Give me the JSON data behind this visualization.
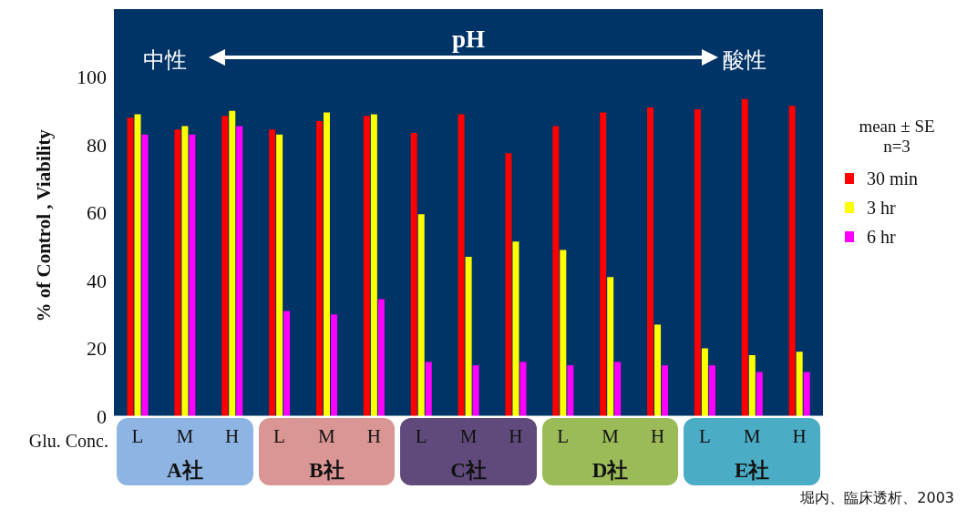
{
  "chart_data": {
    "type": "bar",
    "ylabel": "% of Control , Viability",
    "legend_title": "mean ± SE n=3",
    "categories": [
      "L",
      "M",
      "H",
      "L",
      "M",
      "H",
      "L",
      "M",
      "H",
      "L",
      "M",
      "H",
      "L",
      "M",
      "H"
    ],
    "series": [
      {
        "name": "30 min",
        "color": "#ff0000",
        "values": [
          88,
          84.5,
          88.5,
          84.5,
          87,
          88.5,
          83.5,
          89,
          77.5,
          85.5,
          89.5,
          91,
          90.5,
          93.5,
          91.5
        ]
      },
      {
        "name": "3 hr",
        "color": "#ffff00",
        "values": [
          89,
          85.5,
          90,
          83,
          89.5,
          89,
          59.5,
          47,
          51.5,
          49,
          41,
          27,
          20,
          18,
          19
        ]
      },
      {
        "name": "6 hr",
        "color": "#ff00ff",
        "values": [
          83,
          83,
          85.5,
          31,
          30,
          34.5,
          16,
          15,
          16,
          15,
          16,
          15,
          15,
          13,
          13
        ]
      }
    ],
    "ylim": [
      0,
      120
    ],
    "yticks": [
      0,
      20,
      40,
      60,
      80,
      100
    ],
    "legend": "right",
    "annotations": [
      "中性",
      "pH",
      "酸性",
      "Glu. Conc.",
      "A社",
      "B社",
      "C社",
      "D社",
      "E社",
      "堀内、臨床透析、2003"
    ]
  }
}
